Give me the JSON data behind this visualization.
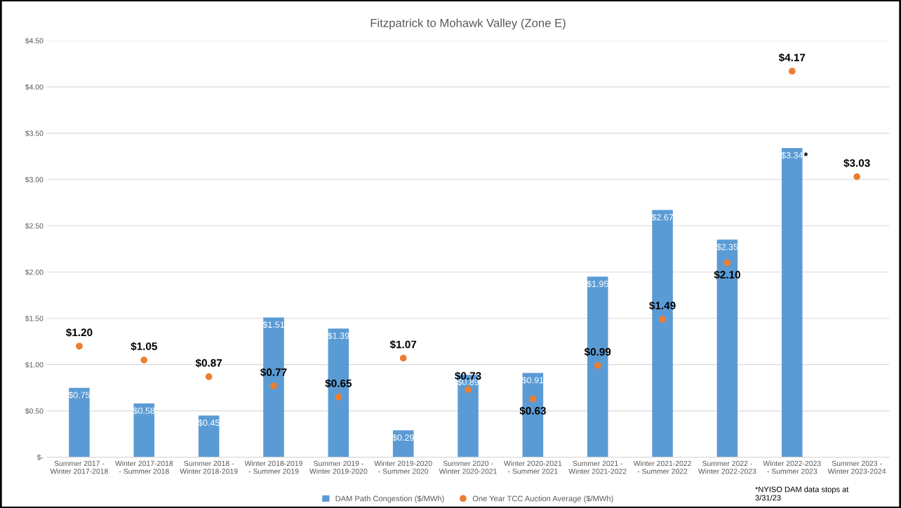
{
  "chart_data": {
    "type": "bar",
    "title": "Fitzpatrick to Mohawk Valley (Zone E)",
    "categories": [
      "Summer 2017 -\nWinter 2017-2018",
      "Winter 2017-2018\n- Summer 2018",
      "Summer 2018 -\nWinter 2018-2019",
      "Winter 2018-2019\n- Summer 2019",
      "Summer 2019 -\nWinter 2019-2020",
      "Winter 2019-2020\n- Summer 2020",
      "Summer 2020 -\nWinter 2020-2021",
      "Winter 2020-2021\n- Summer 2021",
      "Summer 2021 -\nWinter 2021-2022",
      "Winter 2021-2022\n- Summer 2022",
      "Summer 2022 -\nWinter 2022-2023",
      "Winter 2022-2023\n- Summer 2023",
      "Summer 2023 -\nWinter 2023-2024"
    ],
    "series": [
      {
        "name": "DAM Path Congestion ($/MWh)",
        "color": "#5b9bd5",
        "values": [
          0.75,
          0.58,
          0.45,
          1.51,
          1.39,
          0.29,
          0.89,
          0.91,
          1.95,
          2.67,
          2.35,
          3.34,
          null
        ],
        "value_labels": [
          "$0.75",
          "$0.58",
          "$0.45",
          "$1.51",
          "$1.39",
          "$0.29",
          "$0.89",
          "$0.91",
          "$1.95",
          "$2.67",
          "$2.35",
          "$3.34",
          null
        ]
      },
      {
        "name": "One Year TCC Auction Average ($/MWh)",
        "type": "scatter",
        "color": "#ed7d31",
        "marker": "circle",
        "values": [
          1.2,
          1.05,
          0.87,
          0.77,
          0.65,
          1.07,
          0.73,
          0.63,
          0.99,
          1.49,
          2.1,
          4.17,
          3.03
        ],
        "value_labels": [
          "$1.20",
          "$1.05",
          "$0.87",
          "$0.77",
          "$0.65",
          "$1.07",
          "$0.73",
          "$0.63",
          "$0.99",
          "$1.49",
          "$2.10",
          "$4.17",
          "$3.03"
        ]
      }
    ],
    "ylim": [
      0,
      4.5
    ],
    "yticks": [
      {
        "value": 0,
        "label": "$-"
      },
      {
        "value": 0.5,
        "label": "$0.50"
      },
      {
        "value": 1,
        "label": "$1.00"
      },
      {
        "value": 1.5,
        "label": "$1.50"
      },
      {
        "value": 2,
        "label": "$2.00"
      },
      {
        "value": 2.5,
        "label": "$2.50"
      },
      {
        "value": 3,
        "label": "$3.00"
      },
      {
        "value": 3.5,
        "label": "$3.50"
      },
      {
        "value": 4,
        "label": "$4.00"
      },
      {
        "value": 4.5,
        "label": "$4.50"
      }
    ],
    "grid": "y",
    "legend": "bottom",
    "annotations": [
      {
        "text": "*",
        "x": "Winter 2022-2023\n- Summer 2023",
        "y": 3.34
      },
      "*NYISO DAM data stops at\n3/31/23"
    ]
  }
}
